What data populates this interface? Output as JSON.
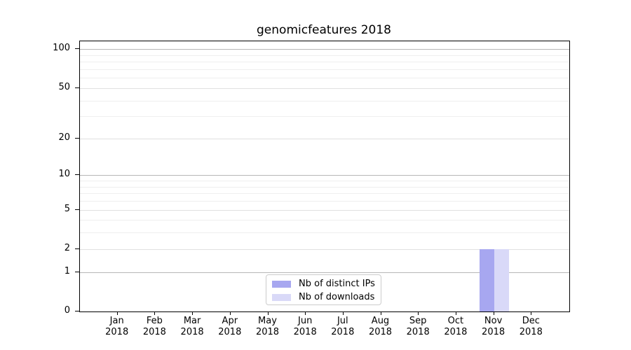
{
  "chart_data": {
    "type": "bar",
    "title": "genomicfeatures 2018",
    "categories": [
      "Jan 2018",
      "Feb 2018",
      "Mar 2018",
      "Apr 2018",
      "May 2018",
      "Jun 2018",
      "Jul 2018",
      "Aug 2018",
      "Sep 2018",
      "Oct 2018",
      "Nov 2018",
      "Dec 2018"
    ],
    "series": [
      {
        "name": "Nb of distinct IPs",
        "color": "#a7a7f0",
        "values": [
          0,
          0,
          0,
          0,
          0,
          0,
          0,
          0,
          0,
          0,
          2,
          0
        ]
      },
      {
        "name": "Nb of downloads",
        "color": "#d9d9f8",
        "values": [
          0,
          0,
          0,
          0,
          0,
          0,
          0,
          0,
          0,
          0,
          2,
          0
        ]
      }
    ],
    "xlabel": "",
    "ylabel": "",
    "yscale": "log1p",
    "ylim": [
      0,
      115
    ],
    "y_ticks": [
      0,
      1,
      2,
      5,
      10,
      20,
      50,
      100
    ],
    "y_minor_ticks": [
      3,
      4,
      6,
      7,
      8,
      9,
      30,
      40,
      60,
      70,
      80,
      90
    ],
    "grid": true,
    "legend_position": "lower center",
    "grid_colors": {
      "major": "#b6b6b6",
      "mid": "#e0e0e0",
      "minor": "#efefef"
    }
  }
}
